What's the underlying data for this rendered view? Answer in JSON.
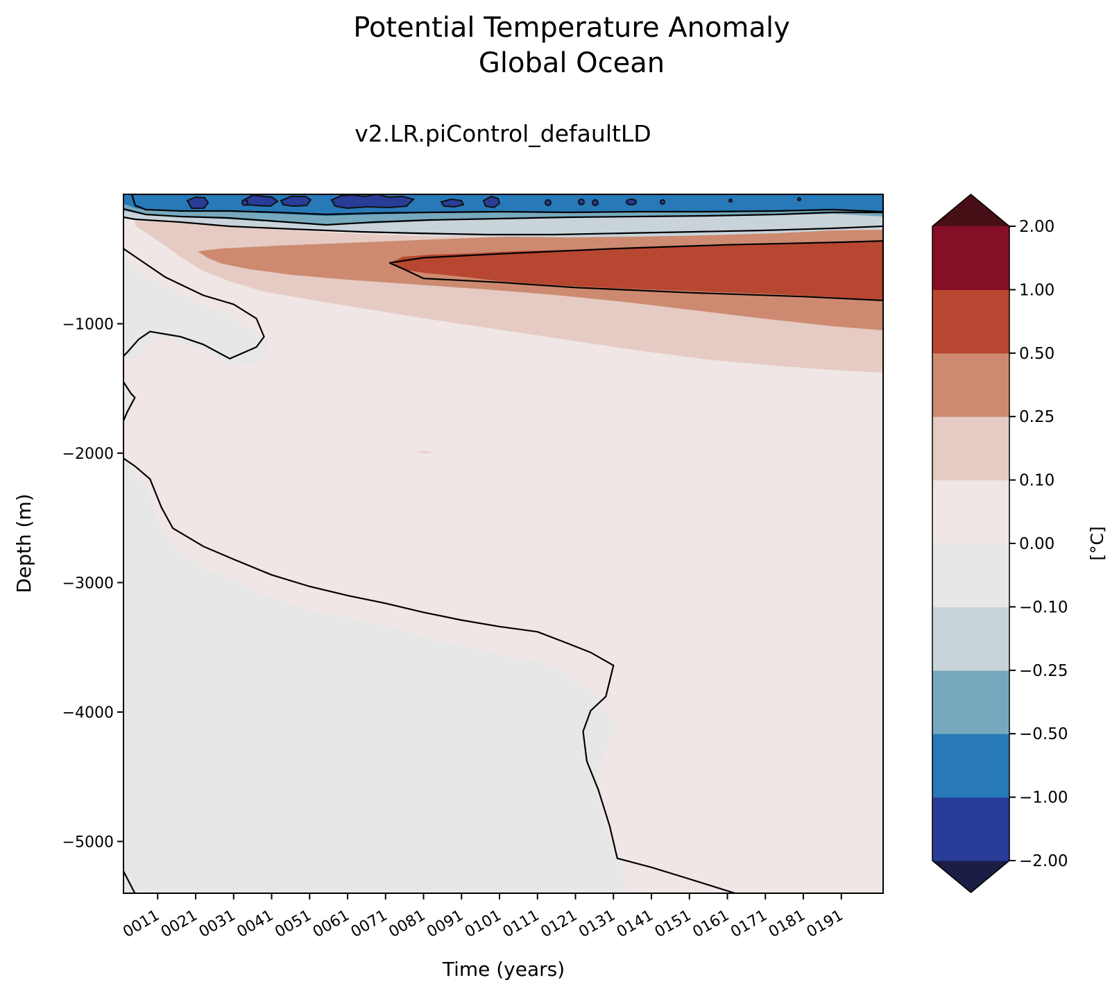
{
  "chart_data": {
    "type": "heatmap",
    "subtype": "filled-contour",
    "title_line1": "Potential Temperature Anomaly",
    "title_line2": "Global Ocean",
    "subtitle": "v2.LR.piControl_defaultLD",
    "xlabel": "Time (years)",
    "ylabel": "Depth (m)",
    "xlim": [
      1,
      201
    ],
    "ylim": [
      -5400,
      0
    ],
    "x_ticks": [
      {
        "label": "0011",
        "value": 10
      },
      {
        "label": "0021",
        "value": 20
      },
      {
        "label": "0031",
        "value": 30
      },
      {
        "label": "0041",
        "value": 40
      },
      {
        "label": "0051",
        "value": 50
      },
      {
        "label": "0061",
        "value": 60
      },
      {
        "label": "0071",
        "value": 70
      },
      {
        "label": "0081",
        "value": 80
      },
      {
        "label": "0091",
        "value": 90
      },
      {
        "label": "0101",
        "value": 100
      },
      {
        "label": "0111",
        "value": 110
      },
      {
        "label": "0121",
        "value": 120
      },
      {
        "label": "0131",
        "value": 130
      },
      {
        "label": "0141",
        "value": 140
      },
      {
        "label": "0151",
        "value": 150
      },
      {
        "label": "0161",
        "value": 160
      },
      {
        "label": "0171",
        "value": 170
      },
      {
        "label": "0181",
        "value": 180
      },
      {
        "label": "0191",
        "value": 190
      }
    ],
    "y_ticks": [
      {
        "label": "−1000",
        "value": -1000
      },
      {
        "label": "−2000",
        "value": -2000
      },
      {
        "label": "−3000",
        "value": -3000
      },
      {
        "label": "−4000",
        "value": -4000
      },
      {
        "label": "−5000",
        "value": -5000
      }
    ],
    "colorbar": {
      "label": "[°C]",
      "levels": [
        -2.0,
        -1.0,
        -0.5,
        -0.25,
        -0.1,
        0.0,
        0.1,
        0.25,
        0.5,
        1.0,
        2.0
      ],
      "tick_labels": [
        "−2.00",
        "−1.00",
        "−0.50",
        "−0.25",
        "−0.10",
        "0.00",
        "0.10",
        "0.25",
        "0.50",
        "1.00",
        "2.00"
      ],
      "colors": [
        "#283c98",
        "#2779b8",
        "#76a9be",
        "#c9d4da",
        "#e8e7e8",
        "#efe6e5",
        "#e5cbc3",
        "#cd8a71",
        "#b84731",
        "#850f26"
      ],
      "under_color": "#1b1d45",
      "over_color": "#480e16"
    },
    "contour_lines": [
      {
        "level": "0.00",
        "path": [
          [
            1,
            -420
          ],
          [
            6,
            -520
          ],
          [
            12,
            -640
          ],
          [
            22,
            -780
          ],
          [
            30,
            -850
          ],
          [
            36,
            -960
          ],
          [
            38,
            -1100
          ],
          [
            36,
            -1180
          ],
          [
            29,
            -1270
          ],
          [
            22,
            -1160
          ],
          [
            16,
            -1100
          ],
          [
            8,
            -1060
          ],
          [
            5,
            -1120
          ],
          [
            2,
            -1220
          ],
          [
            1,
            -1250
          ]
        ]
      },
      {
        "level": "0.00",
        "path": [
          [
            1,
            -1450
          ],
          [
            3,
            -1540
          ],
          [
            4,
            -1570
          ],
          [
            2,
            -1680
          ],
          [
            1,
            -1750
          ]
        ]
      },
      {
        "level": "0.00",
        "path": [
          [
            1,
            -2040
          ],
          [
            4,
            -2100
          ],
          [
            8,
            -2200
          ],
          [
            11,
            -2420
          ],
          [
            14,
            -2580
          ],
          [
            22,
            -2720
          ],
          [
            30,
            -2820
          ],
          [
            40,
            -2940
          ],
          [
            50,
            -3030
          ],
          [
            60,
            -3100
          ],
          [
            70,
            -3160
          ],
          [
            80,
            -3230
          ],
          [
            90,
            -3290
          ],
          [
            100,
            -3340
          ],
          [
            110,
            -3380
          ],
          [
            118,
            -3470
          ],
          [
            124,
            -3540
          ],
          [
            130,
            -3640
          ],
          [
            128,
            -3880
          ],
          [
            124,
            -3990
          ],
          [
            122,
            -4150
          ],
          [
            123,
            -4380
          ],
          [
            126,
            -4600
          ],
          [
            129,
            -4880
          ],
          [
            131,
            -5130
          ],
          [
            140,
            -5200
          ],
          [
            150,
            -5290
          ],
          [
            162,
            -5400
          ]
        ]
      },
      {
        "level": "0.00",
        "path": [
          [
            1,
            -5230
          ],
          [
            4,
            -5400
          ]
        ]
      },
      {
        "level": "0.50",
        "path": [
          [
            71,
            -530
          ],
          [
            80,
            -490
          ],
          [
            100,
            -460
          ],
          [
            130,
            -420
          ],
          [
            160,
            -390
          ],
          [
            190,
            -370
          ],
          [
            201,
            -360
          ],
          [
            201,
            -820
          ],
          [
            180,
            -790
          ],
          [
            150,
            -760
          ],
          [
            120,
            -720
          ],
          [
            100,
            -680
          ],
          [
            80,
            -650
          ],
          [
            75,
            -580
          ],
          [
            71,
            -530
          ]
        ]
      },
      {
        "level": "0.10",
        "path": [
          [
            1,
            -160
          ],
          [
            10,
            -190
          ],
          [
            30,
            -220
          ],
          [
            60,
            -240
          ],
          [
            90,
            -250
          ],
          [
            120,
            -240
          ],
          [
            150,
            -215
          ],
          [
            180,
            -200
          ],
          [
            201,
            -190
          ]
        ]
      },
      {
        "level": "0.25",
        "path": [
          [
            1,
            -210
          ],
          [
            20,
            -250
          ],
          [
            50,
            -280
          ],
          [
            80,
            -300
          ],
          [
            110,
            -310
          ],
          [
            140,
            -300
          ],
          [
            170,
            -270
          ],
          [
            201,
            -250
          ]
        ]
      },
      {
        "level": "-0.50",
        "path": [
          [
            1,
            -80
          ],
          [
            20,
            -110
          ],
          [
            50,
            -120
          ],
          [
            80,
            -125
          ],
          [
            110,
            -120
          ],
          [
            140,
            -115
          ],
          [
            170,
            -110
          ],
          [
            201,
            -105
          ]
        ]
      }
    ]
  }
}
